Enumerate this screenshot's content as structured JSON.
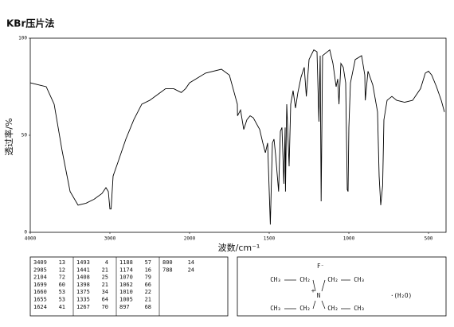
{
  "chart_data": {
    "type": "line",
    "title": "KBr压片法",
    "x_label": "波数/cm⁻¹",
    "y_label": "透过率/%",
    "x": [
      4000,
      3900,
      3800,
      3700,
      3600,
      3500,
      3400,
      3300,
      3200,
      3100,
      3050,
      3020,
      3000,
      2985,
      2960,
      2900,
      2800,
      2700,
      2600,
      2500,
      2400,
      2300,
      2200,
      2104,
      2050,
      2000,
      1900,
      1800,
      1750,
      1700,
      1699,
      1680,
      1660,
      1640,
      1620,
      1600,
      1560,
      1540,
      1524,
      1510,
      1493,
      1480,
      1470,
      1460,
      1441,
      1430,
      1420,
      1408,
      1400,
      1398,
      1390,
      1375,
      1365,
      1350,
      1335,
      1320,
      1300,
      1280,
      1267,
      1250,
      1220,
      1200,
      1188,
      1180,
      1174,
      1165,
      1120,
      1100,
      1080,
      1070,
      1062,
      1050,
      1035,
      1020,
      1010,
      1005,
      1000,
      990,
      960,
      920,
      900,
      897,
      880,
      850,
      820,
      810,
      800,
      788,
      780,
      760,
      730,
      700,
      650,
      600,
      550,
      520,
      500,
      480,
      450,
      420,
      400
    ],
    "values": [
      77,
      76,
      75,
      66,
      42,
      21,
      14,
      15,
      17,
      20,
      23,
      21,
      12,
      12,
      29,
      36,
      48,
      58,
      66,
      68,
      71,
      74,
      74,
      72,
      74,
      77,
      82,
      84,
      81,
      66,
      60,
      63,
      53,
      58,
      60,
      59,
      53,
      46,
      41,
      46,
      4,
      46,
      48,
      40,
      21,
      52,
      54,
      25,
      54,
      21,
      66,
      34,
      66,
      73,
      64,
      72,
      80,
      85,
      70,
      89,
      94,
      93,
      57,
      91,
      16,
      91,
      94,
      87,
      75,
      79,
      66,
      87,
      85,
      77,
      22,
      21,
      54,
      77,
      89,
      91,
      81,
      68,
      83,
      76,
      62,
      29,
      14,
      24,
      58,
      68,
      70,
      68,
      67,
      68,
      74,
      82,
      83,
      81,
      75,
      68,
      62
    ],
    "color": "#000000",
    "xlim": [
      4000,
      400
    ],
    "xticks": [
      4000,
      3000,
      2000,
      1500,
      1000,
      500
    ],
    "ylim": [
      0,
      100
    ],
    "yticks": [
      0,
      50,
      100
    ],
    "grid": false
  },
  "peak_table": [
    [
      [
        3409,
        13
      ],
      [
        2985,
        12
      ],
      [
        2104,
        72
      ],
      [
        1699,
        60
      ],
      [
        1660,
        53
      ],
      [
        1655,
        53
      ],
      [
        1624,
        41
      ]
    ],
    [
      [
        1493,
        4
      ],
      [
        1441,
        21
      ],
      [
        1408,
        25
      ],
      [
        1398,
        21
      ],
      [
        1375,
        34
      ],
      [
        1335,
        64
      ],
      [
        1267,
        70
      ]
    ],
    [
      [
        1188,
        57
      ],
      [
        1174,
        16
      ],
      [
        1070,
        79
      ],
      [
        1062,
        66
      ],
      [
        1010,
        22
      ],
      [
        1005,
        21
      ],
      [
        897,
        68
      ]
    ],
    [
      [
        800,
        14
      ],
      [
        788,
        24
      ]
    ]
  ],
  "structure": {
    "anion": "F⁻",
    "center": "N",
    "charge": "+",
    "groups": [
      "CH₃",
      "CH₂",
      "CH₂",
      "CH₃",
      "CH₃",
      "CH₂",
      "CH₂",
      "CH₃"
    ],
    "solvate": "·(H₂O)"
  }
}
